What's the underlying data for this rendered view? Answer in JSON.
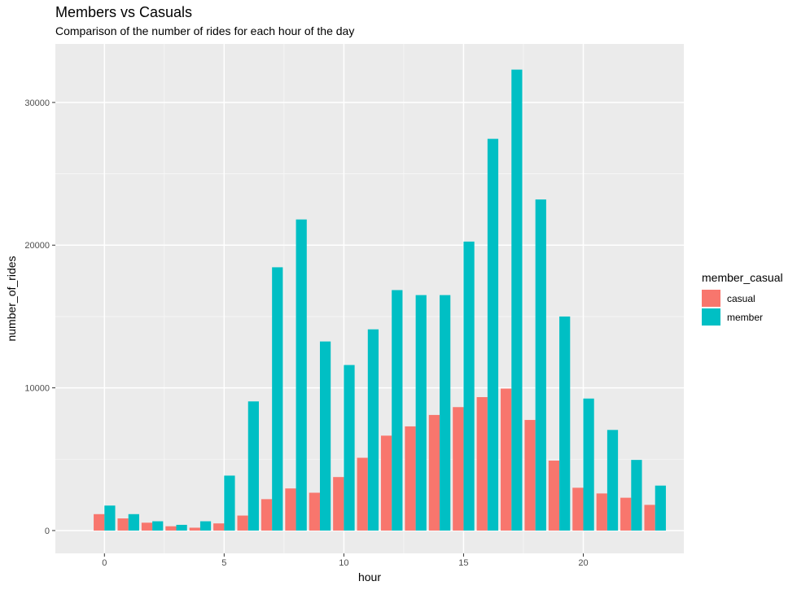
{
  "chart_data": {
    "type": "bar",
    "title": "Members vs Casuals",
    "subtitle": "Comparison of the number of rides for each hour of the day",
    "xlabel": "hour",
    "ylabel": "number_of_rides",
    "x": [
      0,
      1,
      2,
      3,
      4,
      5,
      6,
      7,
      8,
      9,
      10,
      11,
      12,
      13,
      14,
      15,
      16,
      17,
      18,
      19,
      20,
      21,
      22,
      23
    ],
    "xlim": [
      -2.05,
      24.2
    ],
    "x_ticks": [
      0,
      5,
      10,
      15,
      20
    ],
    "x_tick_labels": [
      "0",
      "5",
      "10",
      "15",
      "20"
    ],
    "ylim": [
      -1600,
      34100
    ],
    "y_ticks": [
      0,
      10000,
      20000,
      30000
    ],
    "y_tick_labels": [
      "0",
      "10000",
      "20000",
      "30000"
    ],
    "grid": true,
    "legend": {
      "title": "member_casual",
      "position": "right"
    },
    "series": [
      {
        "name": "casual",
        "color": "#F8766D",
        "values": [
          1150,
          850,
          550,
          300,
          200,
          500,
          1050,
          2200,
          2950,
          2650,
          3750,
          5100,
          6650,
          7300,
          8100,
          8650,
          9350,
          9950,
          7750,
          4900,
          3000,
          2600,
          2300,
          1800
        ]
      },
      {
        "name": "member",
        "color": "#00BFC4",
        "values": [
          1750,
          1150,
          650,
          400,
          650,
          3850,
          9050,
          18450,
          21800,
          13250,
          11600,
          14100,
          16850,
          16500,
          16500,
          20250,
          27450,
          32300,
          23200,
          15000,
          9250,
          7050,
          4950,
          3150
        ]
      }
    ]
  }
}
